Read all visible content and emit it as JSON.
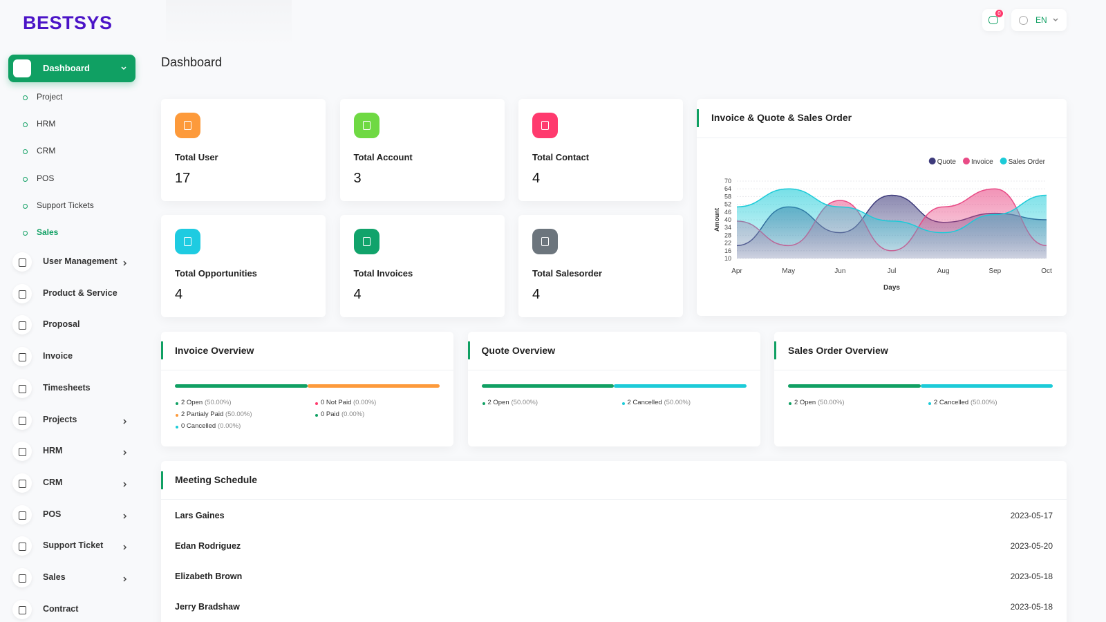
{
  "brand": "BESTSYS",
  "header": {
    "notifications": 0,
    "language": "EN"
  },
  "sidebar": {
    "active": "Dashboard",
    "submenu": [
      "Project",
      "HRM",
      "CRM",
      "POS",
      "Support Tickets",
      "Sales"
    ],
    "current_submenu": "Sales",
    "items": [
      {
        "label": "User Management",
        "expandable": true
      },
      {
        "label": "Product & Service",
        "expandable": false
      },
      {
        "label": "Proposal",
        "expandable": false
      },
      {
        "label": "Invoice",
        "expandable": false
      },
      {
        "label": "Timesheets",
        "expandable": false
      },
      {
        "label": "Projects",
        "expandable": true
      },
      {
        "label": "HRM",
        "expandable": true
      },
      {
        "label": "CRM",
        "expandable": true
      },
      {
        "label": "POS",
        "expandable": true
      },
      {
        "label": "Support Ticket",
        "expandable": true
      },
      {
        "label": "Sales",
        "expandable": true
      },
      {
        "label": "Contract",
        "expandable": false
      }
    ]
  },
  "page_title": "Dashboard",
  "stats": [
    {
      "label": "Total User",
      "value": 17
    },
    {
      "label": "Total Account",
      "value": 3
    },
    {
      "label": "Total Contact",
      "value": 4
    },
    {
      "label": "Total Opportunities",
      "value": 4
    },
    {
      "label": "Total Invoices",
      "value": 4
    },
    {
      "label": "Total Salesorder",
      "value": 4
    }
  ],
  "chart_data": {
    "type": "area",
    "title": "Invoice & Quote & Sales Order",
    "x_label": "Days",
    "y_label": "Amount",
    "categories": [
      "Apr",
      "May",
      "Jun",
      "Jul",
      "Aug",
      "Sep",
      "Oct"
    ],
    "series": [
      {
        "name": "Quote",
        "color": "#3d3a7b",
        "values": [
          20,
          50,
          30,
          59,
          38,
          45,
          40
        ]
      },
      {
        "name": "Invoice",
        "color": "#e94b86",
        "values": [
          39,
          20,
          55,
          16,
          50,
          64,
          20
        ]
      },
      {
        "name": "Sales Order",
        "color": "#1ccbd8",
        "values": [
          50,
          64,
          50,
          39,
          30,
          44,
          59
        ]
      }
    ],
    "ylim": [
      10,
      70
    ],
    "yticks": [
      10,
      16,
      22,
      28,
      34,
      40,
      46,
      52,
      58,
      64,
      70
    ],
    "grid": true,
    "legend": "top-right"
  },
  "overviews": [
    {
      "title": "Invoice Overview",
      "items": [
        {
          "text": "2 Open",
          "percent": 50,
          "percent_label": "(50.00%)",
          "color": "#10a063"
        },
        {
          "text": "0 Not Paid",
          "percent": 0,
          "percent_label": "(0.00%)",
          "color": "#ff3a6e"
        },
        {
          "text": "2 Partialy Paid",
          "percent": 50,
          "percent_label": "(50.00%)",
          "color": "#fd9a3b"
        },
        {
          "text": "0 Paid",
          "percent": 0,
          "percent_label": "(0.00%)",
          "color": "#10a063"
        },
        {
          "text": "0 Cancelled",
          "percent": 0,
          "percent_label": "(0.00%)",
          "color": "#1ccbd8"
        }
      ]
    },
    {
      "title": "Quote Overview",
      "items": [
        {
          "text": "2 Open",
          "percent": 50,
          "percent_label": "(50.00%)",
          "color": "#10a063"
        },
        {
          "text": "2 Cancelled",
          "percent": 50,
          "percent_label": "(50.00%)",
          "color": "#1ccbd8"
        }
      ]
    },
    {
      "title": "Sales Order Overview",
      "items": [
        {
          "text": "2 Open",
          "percent": 50,
          "percent_label": "(50.00%)",
          "color": "#10a063"
        },
        {
          "text": "2 Cancelled",
          "percent": 50,
          "percent_label": "(50.00%)",
          "color": "#1ccbd8"
        }
      ]
    }
  ],
  "meeting_schedule": {
    "title": "Meeting Schedule",
    "rows": [
      {
        "name": "Lars Gaines",
        "date": "2023-05-17"
      },
      {
        "name": "Edan Rodriguez",
        "date": "2023-05-20"
      },
      {
        "name": "Elizabeth Brown",
        "date": "2023-05-18"
      },
      {
        "name": "Jerry Bradshaw",
        "date": "2023-05-18"
      }
    ]
  }
}
